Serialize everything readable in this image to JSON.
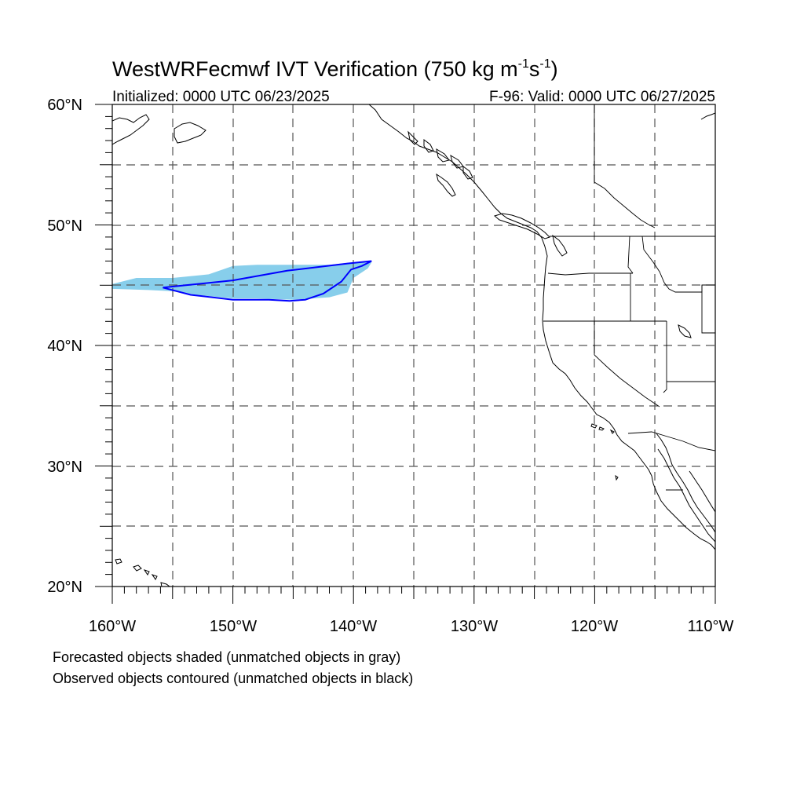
{
  "title": {
    "main": "WestWRFecmwf IVT Verification (750 kg m",
    "sup1": "-1",
    "mid": "s",
    "sup2": "-1",
    "end": ")"
  },
  "subtitle_left": "Initialized: 0000 UTC 06/23/2025",
  "subtitle_right": "F-96: Valid: 0000 UTC 06/27/2025",
  "lat_labels": [
    "60°N",
    "50°N",
    "40°N",
    "30°N",
    "20°N"
  ],
  "lon_labels": [
    "160°W",
    "150°W",
    "140°W",
    "130°W",
    "120°W",
    "110°W"
  ],
  "notes": [
    "Forecasted objects shaded (unmatched objects in gray)",
    "Observed objects contoured (unmatched objects in black)"
  ],
  "map_extent": {
    "lon_min": -160,
    "lon_max": -110,
    "lat_min": 20,
    "lat_max": 60
  },
  "colors": {
    "forecast_fill": "#87ceeb",
    "observed_contour": "#0000ff",
    "grid": "#555555"
  },
  "forecast_object": [
    [
      -160,
      45.1
    ],
    [
      -158,
      45.6
    ],
    [
      -155,
      45.6
    ],
    [
      -152,
      45.9
    ],
    [
      -150,
      46.6
    ],
    [
      -148,
      46.7
    ],
    [
      -145,
      46.7
    ],
    [
      -142,
      46.7
    ],
    [
      -140,
      46.9
    ],
    [
      -138.5,
      46.9
    ],
    [
      -138.8,
      46.4
    ],
    [
      -140,
      45.6
    ],
    [
      -140.5,
      44.4
    ],
    [
      -142,
      44.0
    ],
    [
      -145,
      43.8
    ],
    [
      -148,
      43.9
    ],
    [
      -150,
      43.9
    ],
    [
      -153,
      44.2
    ],
    [
      -155,
      44.5
    ],
    [
      -157,
      44.6
    ],
    [
      -160,
      44.7
    ]
  ],
  "observed_object": [
    [
      -155.8,
      44.8
    ],
    [
      -150,
      45.4
    ],
    [
      -145.5,
      46.2
    ],
    [
      -140.5,
      46.8
    ],
    [
      -138.5,
      47.0
    ],
    [
      -139.3,
      46.6
    ],
    [
      -140.2,
      46.3
    ],
    [
      -141.0,
      45.3
    ],
    [
      -142.5,
      44.3
    ],
    [
      -144.0,
      43.8
    ],
    [
      -145.3,
      43.7
    ],
    [
      -147,
      43.8
    ],
    [
      -150,
      43.8
    ],
    [
      -153.5,
      44.2
    ],
    [
      -155.8,
      44.8
    ]
  ]
}
